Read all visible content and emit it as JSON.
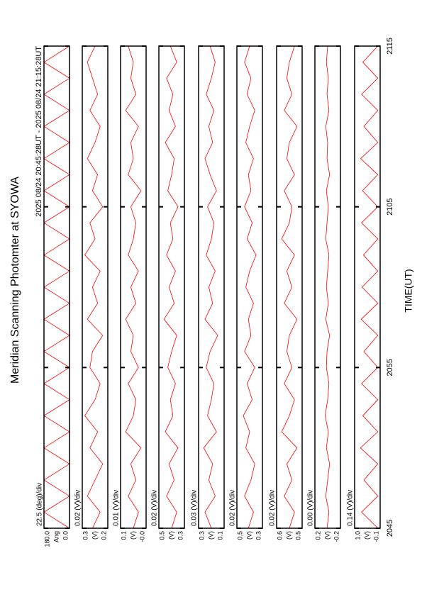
{
  "chart_data": {
    "type": "line",
    "title": "Meridian Scanning Photomter at SYOWA",
    "subtitle": "2025 08/24 20:45:28UT - 2025 08/24 21:15:28UT",
    "x_label": "TIME(UT)",
    "color": "#ff0000",
    "xlim": [
      1245,
      1275
    ],
    "xticks": [
      {
        "value": 1245,
        "label": "2045"
      },
      {
        "value": 1255,
        "label": "2055"
      },
      {
        "value": 1265,
        "label": "2105"
      },
      {
        "value": 1275,
        "label": "2115"
      }
    ],
    "x": [
      1245,
      1246,
      1247,
      1248,
      1249,
      1250,
      1251,
      1252,
      1253,
      1254,
      1255,
      1256,
      1257,
      1258,
      1259,
      1260,
      1261,
      1262,
      1263,
      1264,
      1265,
      1266,
      1267,
      1268,
      1269,
      1270,
      1271,
      1272,
      1273,
      1274,
      1275
    ],
    "panels": [
      {
        "scale": "22.5 (deg)/div",
        "unit": "Ang",
        "ylim": [
          0,
          180
        ],
        "yticks": [
          {
            "value": 180,
            "label": "180.0"
          },
          {
            "value": 0,
            "label": "0.0"
          }
        ],
        "values": [
          0,
          180,
          0,
          180,
          0,
          180,
          0,
          180,
          0,
          180,
          0,
          180,
          0,
          180,
          0,
          180,
          0,
          180,
          0,
          180,
          0,
          180,
          0,
          180,
          0,
          180,
          0,
          180,
          0,
          180,
          0
        ]
      },
      {
        "scale": "0.02 (V)/div",
        "unit": "(V)",
        "ylim": [
          0.2,
          0.3
        ],
        "yticks": [
          0.3,
          0.2
        ],
        "values": [
          0.26,
          0.23,
          0.28,
          0.25,
          0.22,
          0.27,
          0.24,
          0.29,
          0.25,
          0.23,
          0.27,
          0.26,
          0.22,
          0.28,
          0.24,
          0.26,
          0.23,
          0.29,
          0.25,
          0.27,
          0.22,
          0.26,
          0.24,
          0.28,
          0.25,
          0.23,
          0.27,
          0.24,
          0.26,
          0.28,
          0.25
        ]
      },
      {
        "scale": "0.01 (V)/div",
        "unit": "(V)",
        "ylim": [
          0,
          0.1
        ],
        "yticks": [
          0.1,
          {
            "value": 0,
            "label": "-0.0"
          }
        ],
        "values": [
          0.05,
          0.03,
          0.07,
          0.04,
          0.06,
          0.02,
          0.08,
          0.05,
          0.04,
          0.07,
          0.03,
          0.06,
          0.05,
          0.08,
          0.04,
          0.06,
          0.03,
          0.07,
          0.05,
          0.04,
          0.06,
          0.02,
          0.07,
          0.05,
          0.06,
          0.03,
          0.08,
          0.04,
          0.06,
          0.05,
          0.07
        ]
      },
      {
        "scale": "0.02 (V)/div",
        "unit": "(V)",
        "ylim": [
          0.3,
          0.5
        ],
        "yticks": [
          0.5,
          0.3
        ],
        "values": [
          0.4,
          0.36,
          0.44,
          0.38,
          0.42,
          0.35,
          0.45,
          0.39,
          0.41,
          0.37,
          0.43,
          0.4,
          0.36,
          0.46,
          0.38,
          0.42,
          0.37,
          0.44,
          0.39,
          0.41,
          0.35,
          0.43,
          0.4,
          0.38,
          0.45,
          0.37,
          0.42,
          0.39,
          0.44,
          0.36,
          0.41
        ]
      },
      {
        "scale": "0.03 (V)/div",
        "unit": "(V)",
        "ylim": [
          0.1,
          0.3
        ],
        "yticks": [
          0.3,
          0.1
        ],
        "values": [
          0.2,
          0.25,
          0.17,
          0.22,
          0.19,
          0.26,
          0.16,
          0.23,
          0.2,
          0.18,
          0.24,
          0.21,
          0.15,
          0.25,
          0.19,
          0.22,
          0.17,
          0.24,
          0.2,
          0.18,
          0.23,
          0.16,
          0.21,
          0.25,
          0.19,
          0.22,
          0.18,
          0.24,
          0.2,
          0.17,
          0.21
        ]
      },
      {
        "scale": "0.02 (V)/div",
        "unit": "(V)",
        "ylim": [
          0.3,
          0.5
        ],
        "yticks": [
          0.5,
          0.3
        ],
        "values": [
          0.41,
          0.37,
          0.44,
          0.39,
          0.36,
          0.43,
          0.4,
          0.45,
          0.38,
          0.42,
          0.36,
          0.44,
          0.39,
          0.41,
          0.37,
          0.43,
          0.4,
          0.35,
          0.42,
          0.38,
          0.44,
          0.39,
          0.41,
          0.37,
          0.43,
          0.4,
          0.36,
          0.42,
          0.39,
          0.44,
          0.4
        ]
      },
      {
        "scale": "0.02 (V)/div",
        "unit": "(V)",
        "ylim": [
          0.5,
          0.6
        ],
        "yticks": [
          0.6,
          0.5
        ],
        "values": [
          0.55,
          0.53,
          0.57,
          0.54,
          0.56,
          0.52,
          0.58,
          0.55,
          0.53,
          0.57,
          0.54,
          0.56,
          0.55,
          0.52,
          0.57,
          0.54,
          0.56,
          0.53,
          0.58,
          0.55,
          0.54,
          0.57,
          0.53,
          0.56,
          0.55,
          0.52,
          0.57,
          0.54,
          0.56,
          0.55,
          0.53
        ]
      },
      {
        "scale": "0.00 (V)/div",
        "unit": "(V)",
        "ylim": [
          -0.2,
          0.2
        ],
        "yticks": [
          0.2,
          -0.2
        ],
        "values": [
          0.01,
          -0.02,
          0.03,
          0,
          -0.03,
          0.02,
          -0.01,
          0.04,
          0,
          -0.02,
          0.02,
          0.01,
          -0.03,
          0.03,
          -0.01,
          0.02,
          0,
          -0.02,
          0.03,
          0.01,
          -0.01,
          0.02,
          -0.03,
          0.01,
          0,
          0.03,
          -0.02,
          0.01,
          -0.01,
          0.02,
          0
        ]
      },
      {
        "scale": "0.14 (V)/div",
        "unit": "(V)",
        "ylim": [
          -0.1,
          1.0
        ],
        "yticks": [
          {
            "value": 1.0,
            "label": "1.0"
          },
          -0.1
        ],
        "values": [
          0,
          0.7,
          0,
          0.6,
          0,
          0.75,
          0,
          0.65,
          0,
          0.7,
          0,
          0.6,
          0,
          0.72,
          0,
          0.68,
          0,
          0.62,
          0,
          0.7,
          0,
          0.66,
          0,
          0.74,
          0,
          0.6,
          0,
          0.7,
          0,
          0.65,
          0
        ]
      }
    ]
  }
}
